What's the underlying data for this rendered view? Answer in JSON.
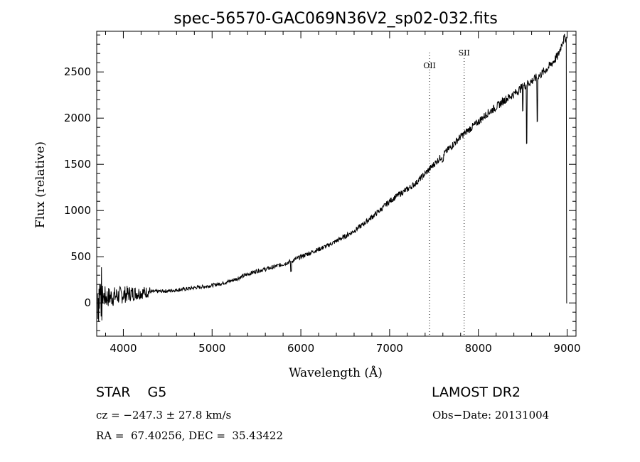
{
  "chart_data": {
    "type": "line",
    "title": "spec-56570-GAC069N36V2_sp02-032.fits",
    "xlabel": "Wavelength (Å)",
    "ylabel": "Flux (relative)",
    "xlim": [
      3700,
      9100
    ],
    "ylim": [
      -360,
      2940
    ],
    "xticks": [
      4000,
      5000,
      6000,
      7000,
      8000,
      9000
    ],
    "yticks": [
      0,
      500,
      1000,
      1500,
      2000,
      2500
    ],
    "grid": false,
    "series": [
      {
        "name": "flux",
        "x": [
          3700,
          3800,
          3900,
          4000,
          4100,
          4200,
          4300,
          4400,
          4500,
          4600,
          4700,
          4800,
          4900,
          5000,
          5100,
          5200,
          5300,
          5400,
          5500,
          5600,
          5700,
          5800,
          5900,
          6000,
          6100,
          6200,
          6300,
          6400,
          6500,
          6600,
          6700,
          6800,
          6900,
          7000,
          7100,
          7200,
          7300,
          7400,
          7500,
          7600,
          7700,
          7800,
          7900,
          8000,
          8100,
          8200,
          8300,
          8400,
          8500,
          8600,
          8700,
          8800,
          8900,
          8950,
          8990
        ],
        "y": [
          100,
          60,
          70,
          90,
          105,
          110,
          120,
          125,
          130,
          140,
          150,
          165,
          175,
          190,
          210,
          235,
          270,
          310,
          345,
          365,
          390,
          420,
          455,
          500,
          540,
          580,
          620,
          670,
          720,
          780,
          850,
          930,
          1010,
          1100,
          1170,
          1230,
          1300,
          1400,
          1500,
          1600,
          1700,
          1800,
          1880,
          1960,
          2050,
          2120,
          2200,
          2260,
          2340,
          2400,
          2470,
          2560,
          2680,
          2840,
          2880
        ]
      }
    ],
    "lines": [
      {
        "label": "OII",
        "x": 7450
      },
      {
        "label": "SII",
        "x": 7840
      }
    ]
  },
  "info": {
    "class_text": "STAR    G5",
    "survey": "LAMOST DR2",
    "cz_text": "cz = −247.3 ± 27.8 km/s",
    "obs_date": "Obs−Date: 20131004",
    "coords": "RA =  67.40256, DEC =  35.43422"
  }
}
